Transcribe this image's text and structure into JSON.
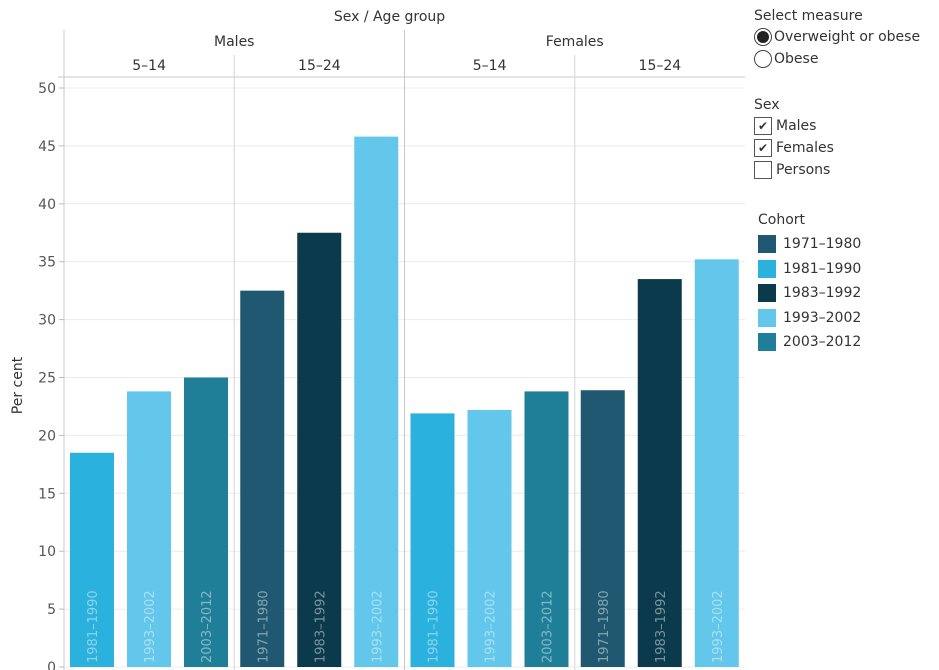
{
  "chart_data": {
    "type": "bar",
    "column_header": "Sex / Age group",
    "ylabel": "Per cent",
    "ylim": [
      0,
      50
    ],
    "yticks": [
      0,
      5,
      10,
      15,
      20,
      25,
      30,
      35,
      40,
      45,
      50
    ],
    "grid": true,
    "groups": [
      {
        "sex": "Males",
        "age": "5–14",
        "bars": [
          {
            "cohort": "1981–1990",
            "value": 18.5
          },
          {
            "cohort": "1993–2002",
            "value": 23.8
          },
          {
            "cohort": "2003–2012",
            "value": 25.0
          }
        ]
      },
      {
        "sex": "Males",
        "age": "15–24",
        "bars": [
          {
            "cohort": "1971–1980",
            "value": 32.5
          },
          {
            "cohort": "1983–1992",
            "value": 37.5
          },
          {
            "cohort": "1993–2002",
            "value": 45.8
          }
        ]
      },
      {
        "sex": "Females",
        "age": "5–14",
        "bars": [
          {
            "cohort": "1981–1990",
            "value": 21.9
          },
          {
            "cohort": "1993–2002",
            "value": 22.2
          },
          {
            "cohort": "2003–2012",
            "value": 23.8
          }
        ]
      },
      {
        "sex": "Females",
        "age": "15–24",
        "bars": [
          {
            "cohort": "1971–1980",
            "value": 23.9
          },
          {
            "cohort": "1983–1992",
            "value": 33.5
          },
          {
            "cohort": "1993–2002",
            "value": 35.2
          }
        ]
      }
    ],
    "legend_placement": "right"
  },
  "colors": {
    "1971–1980": "#1f5870",
    "1981–1990": "#2ab1de",
    "1983–1992": "#0b3a4d",
    "1993–2002": "#62c7ea",
    "2003–2012": "#207f98"
  },
  "controls": {
    "measure": {
      "title": "Select measure",
      "options": [
        {
          "label": "Overweight or obese",
          "selected": true
        },
        {
          "label": "Obese",
          "selected": false
        }
      ]
    },
    "sex": {
      "title": "Sex",
      "options": [
        {
          "label": "Males",
          "checked": true
        },
        {
          "label": "Females",
          "checked": true
        },
        {
          "label": "Persons",
          "checked": false
        }
      ]
    },
    "cohort": {
      "title": "Cohort",
      "items": [
        {
          "label": "1971–1980",
          "color": "#1f5870"
        },
        {
          "label": "1981–1990",
          "color": "#2ab1de"
        },
        {
          "label": "1983–1992",
          "color": "#0b3a4d"
        },
        {
          "label": "1993–2002",
          "color": "#62c7ea"
        },
        {
          "label": "2003–2012",
          "color": "#207f98"
        }
      ]
    }
  }
}
